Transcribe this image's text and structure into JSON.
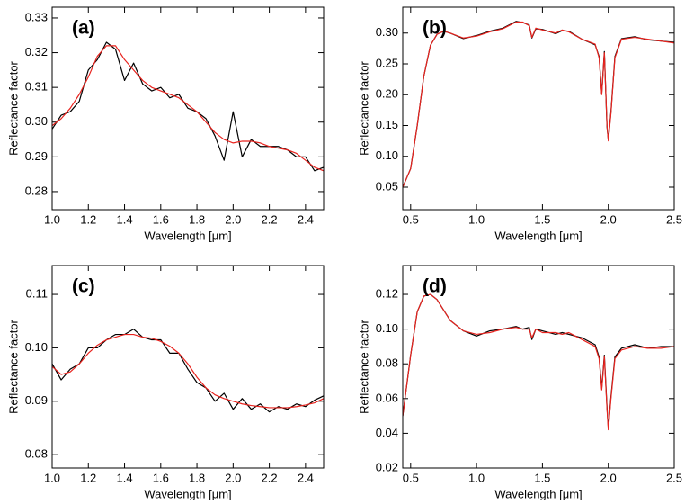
{
  "chart_data": [
    {
      "type": "line",
      "title": "(a)",
      "xlabel": "Wavelength [μm]",
      "ylabel": "Reflectance factor",
      "x": [
        1.0,
        1.05,
        1.1,
        1.15,
        1.2,
        1.25,
        1.3,
        1.35,
        1.4,
        1.45,
        1.5,
        1.55,
        1.6,
        1.65,
        1.7,
        1.75,
        1.8,
        1.85,
        1.9,
        1.95,
        2.0,
        2.05,
        2.1,
        2.15,
        2.2,
        2.25,
        2.3,
        2.35,
        2.4,
        2.45,
        2.5
      ],
      "series": [
        {
          "color": "#000000",
          "values": [
            0.298,
            0.302,
            0.303,
            0.306,
            0.315,
            0.318,
            0.323,
            0.321,
            0.312,
            0.317,
            0.311,
            0.309,
            0.31,
            0.307,
            0.308,
            0.304,
            0.303,
            0.301,
            0.296,
            0.289,
            0.303,
            0.29,
            0.295,
            0.293,
            0.293,
            0.293,
            0.292,
            0.29,
            0.29,
            0.286,
            0.287
          ]
        },
        {
          "color": "#e8231e",
          "values": [
            0.299,
            0.301,
            0.304,
            0.308,
            0.313,
            0.319,
            0.322,
            0.322,
            0.318,
            0.315,
            0.312,
            0.31,
            0.309,
            0.308,
            0.307,
            0.305,
            0.303,
            0.3,
            0.297,
            0.295,
            0.294,
            0.2945,
            0.2945,
            0.294,
            0.293,
            0.2925,
            0.292,
            0.291,
            0.289,
            0.287,
            0.286
          ]
        }
      ],
      "xlim": [
        1.0,
        2.5
      ],
      "ylim": [
        0.2748,
        0.3331
      ],
      "xticks": [
        {
          "value": 1.0,
          "label": "1.0"
        },
        1.2,
        1.4,
        1.6,
        1.8,
        {
          "value": 2.0,
          "label": "2.0"
        },
        2.2,
        2.4
      ],
      "yticks": [
        0.28,
        0.29,
        {
          "value": 0.3,
          "label": "0.30"
        },
        0.31,
        0.32,
        0.33
      ]
    },
    {
      "type": "line",
      "title": "(b)",
      "xlabel": "Wavelength [μm]",
      "ylabel": "Reflectance factor",
      "x": [
        0.44,
        0.5,
        0.55,
        0.6,
        0.65,
        0.7,
        0.75,
        0.8,
        0.9,
        1.0,
        1.1,
        1.2,
        1.3,
        1.35,
        1.4,
        1.42,
        1.45,
        1.5,
        1.6,
        1.65,
        1.7,
        1.8,
        1.9,
        1.93,
        1.95,
        1.97,
        1.99,
        2.0,
        2.02,
        2.05,
        2.1,
        2.2,
        2.3,
        2.4,
        2.5
      ],
      "series": [
        {
          "color": "#000000",
          "values": [
            0.05,
            0.08,
            0.15,
            0.23,
            0.28,
            0.298,
            0.303,
            0.3,
            0.291,
            0.296,
            0.303,
            0.308,
            0.319,
            0.317,
            0.313,
            0.292,
            0.307,
            0.306,
            0.299,
            0.304,
            0.303,
            0.29,
            0.281,
            0.262,
            0.202,
            0.27,
            0.148,
            0.127,
            0.172,
            0.262,
            0.291,
            0.294,
            0.289,
            0.287,
            0.285
          ]
        },
        {
          "color": "#e8231e",
          "values": [
            0.05,
            0.08,
            0.15,
            0.23,
            0.28,
            0.298,
            0.303,
            0.3,
            0.292,
            0.295,
            0.302,
            0.307,
            0.318,
            0.318,
            0.312,
            0.293,
            0.308,
            0.305,
            0.3,
            0.305,
            0.302,
            0.29,
            0.282,
            0.26,
            0.2,
            0.268,
            0.15,
            0.125,
            0.17,
            0.26,
            0.29,
            0.293,
            0.29,
            0.287,
            0.284
          ]
        }
      ],
      "xlim": [
        0.44,
        2.5
      ],
      "ylim": [
        0.0135,
        0.342
      ],
      "xticks": [
        0.5,
        {
          "value": 1.0,
          "label": "1.0"
        },
        1.5,
        {
          "value": 2.0,
          "label": "2.0"
        },
        2.5
      ],
      "yticks": [
        0.05,
        {
          "value": 0.1,
          "label": "0.10"
        },
        0.15,
        {
          "value": 0.2,
          "label": "0.20"
        },
        0.25,
        {
          "value": 0.3,
          "label": "0.30"
        }
      ]
    },
    {
      "type": "line",
      "title": "(c)",
      "xlabel": "Wavelength [μm]",
      "ylabel": "Reflectance factor",
      "x": [
        1.0,
        1.05,
        1.1,
        1.15,
        1.2,
        1.25,
        1.3,
        1.35,
        1.4,
        1.45,
        1.5,
        1.55,
        1.6,
        1.65,
        1.7,
        1.75,
        1.8,
        1.85,
        1.9,
        1.95,
        2.0,
        2.05,
        2.1,
        2.15,
        2.2,
        2.25,
        2.3,
        2.35,
        2.4,
        2.45,
        2.5
      ],
      "series": [
        {
          "color": "#000000",
          "values": [
            0.097,
            0.094,
            0.096,
            0.097,
            0.1,
            0.1,
            0.1015,
            0.1025,
            0.1025,
            0.1035,
            0.102,
            0.1015,
            0.1015,
            0.099,
            0.099,
            0.096,
            0.0935,
            0.0925,
            0.09,
            0.0915,
            0.0885,
            0.0905,
            0.0885,
            0.0895,
            0.088,
            0.089,
            0.0885,
            0.0895,
            0.089,
            0.0902,
            0.091
          ]
        },
        {
          "color": "#e8231e",
          "values": [
            0.0965,
            0.095,
            0.0955,
            0.097,
            0.099,
            0.1005,
            0.1015,
            0.102,
            0.1025,
            0.1025,
            0.102,
            0.1018,
            0.1012,
            0.1003,
            0.099,
            0.097,
            0.0945,
            0.0925,
            0.0912,
            0.0905,
            0.09,
            0.0895,
            0.0892,
            0.089,
            0.0888,
            0.0888,
            0.0888,
            0.089,
            0.0893,
            0.0897,
            0.0905
          ]
        }
      ],
      "xlim": [
        1.0,
        2.5
      ],
      "ylim": [
        0.0775,
        0.1154
      ],
      "xticks": [
        {
          "value": 1.0,
          "label": "1.0"
        },
        1.2,
        1.4,
        1.6,
        1.8,
        {
          "value": 2.0,
          "label": "2.0"
        },
        2.2,
        2.4
      ],
      "yticks": [
        0.08,
        0.09,
        {
          "value": 0.1,
          "label": "0.10"
        },
        0.11
      ]
    },
    {
      "type": "line",
      "title": "(d)",
      "xlabel": "Wavelength [μm]",
      "ylabel": "Reflectance factor",
      "x": [
        0.44,
        0.5,
        0.55,
        0.6,
        0.65,
        0.7,
        0.75,
        0.8,
        0.9,
        1.0,
        1.1,
        1.2,
        1.3,
        1.35,
        1.4,
        1.42,
        1.45,
        1.5,
        1.6,
        1.65,
        1.7,
        1.8,
        1.9,
        1.93,
        1.95,
        1.97,
        1.99,
        2.0,
        2.02,
        2.05,
        2.1,
        2.2,
        2.3,
        2.4,
        2.5
      ],
      "series": [
        {
          "color": "#000000",
          "values": [
            0.05,
            0.085,
            0.11,
            0.119,
            0.12,
            0.117,
            0.111,
            0.105,
            0.099,
            0.096,
            0.099,
            0.1,
            0.1015,
            0.1,
            0.101,
            0.094,
            0.1,
            0.099,
            0.097,
            0.098,
            0.097,
            0.095,
            0.091,
            0.084,
            0.066,
            0.085,
            0.055,
            0.043,
            0.061,
            0.084,
            0.089,
            0.091,
            0.089,
            0.09,
            0.09
          ]
        },
        {
          "color": "#e8231e",
          "values": [
            0.05,
            0.085,
            0.11,
            0.119,
            0.12,
            0.117,
            0.111,
            0.105,
            0.099,
            0.097,
            0.098,
            0.1,
            0.101,
            0.1,
            0.1,
            0.095,
            0.1,
            0.098,
            0.098,
            0.097,
            0.098,
            0.094,
            0.09,
            0.083,
            0.065,
            0.084,
            0.054,
            0.042,
            0.06,
            0.083,
            0.088,
            0.09,
            0.089,
            0.089,
            0.09
          ]
        }
      ],
      "xlim": [
        0.44,
        2.5
      ],
      "ylim": [
        0.02,
        0.1366
      ],
      "xticks": [
        0.5,
        {
          "value": 1.0,
          "label": "1.0"
        },
        1.5,
        {
          "value": 2.0,
          "label": "2.0"
        },
        2.5
      ],
      "yticks": [
        0.02,
        0.04,
        0.06,
        0.08,
        {
          "value": 0.1,
          "label": "0.10"
        },
        0.12
      ]
    }
  ]
}
